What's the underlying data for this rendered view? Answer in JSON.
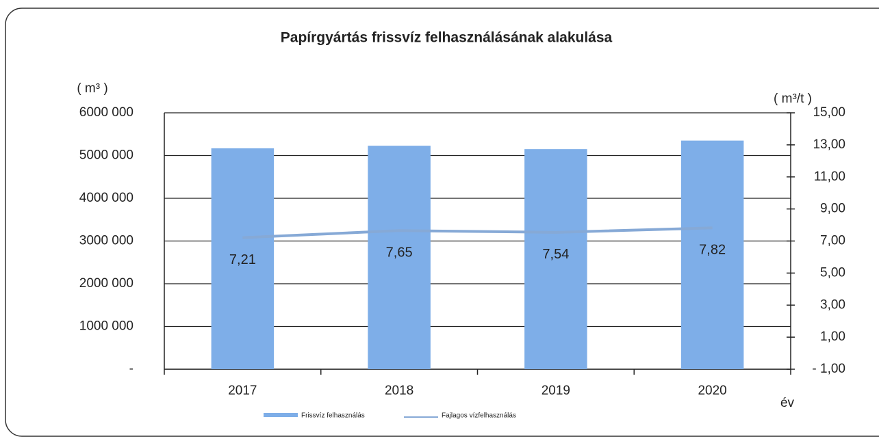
{
  "chart_data": {
    "type": "bar",
    "title": "Papírgyártás frissvíz felhasználásának alakulása",
    "y_label": "( m³ )",
    "y2_label": "( m³/t )",
    "x_label": "év",
    "categories": [
      "2017",
      "2018",
      "2019",
      "2020"
    ],
    "series": [
      {
        "name": "Frissvíz felhasználás",
        "type": "bar",
        "color": "#7eaee8",
        "values": [
          5170000,
          5230000,
          5150000,
          5350000
        ]
      },
      {
        "name": "Fajlagos vízfelhasználás",
        "type": "line",
        "axis": "y2",
        "color": "#86a9d6",
        "values": [
          7.21,
          7.65,
          7.54,
          7.82
        ],
        "value_labels": [
          "7,21",
          "7,65",
          "7,54",
          "7,82"
        ]
      }
    ],
    "ylim": [
      0,
      6000000
    ],
    "yticks": [
      {
        "value": 0,
        "label": "-"
      },
      {
        "value": 1000000,
        "label": "1000 000"
      },
      {
        "value": 2000000,
        "label": "2000 000"
      },
      {
        "value": 3000000,
        "label": "3000 000"
      },
      {
        "value": 4000000,
        "label": "4000 000"
      },
      {
        "value": 5000000,
        "label": "5000 000"
      },
      {
        "value": 6000000,
        "label": "6000 000"
      }
    ],
    "y2lim": [
      -1,
      15
    ],
    "y2ticks": [
      {
        "value": -1,
        "label": "- 1,00"
      },
      {
        "value": 1,
        "label": "1,00"
      },
      {
        "value": 3,
        "label": "3,00"
      },
      {
        "value": 5,
        "label": "5,00"
      },
      {
        "value": 7,
        "label": "7,00"
      },
      {
        "value": 9,
        "label": "9,00"
      },
      {
        "value": 11,
        "label": "11,00"
      },
      {
        "value": 13,
        "label": "13,00"
      },
      {
        "value": 15,
        "label": "15,00"
      }
    ],
    "grid": true
  }
}
